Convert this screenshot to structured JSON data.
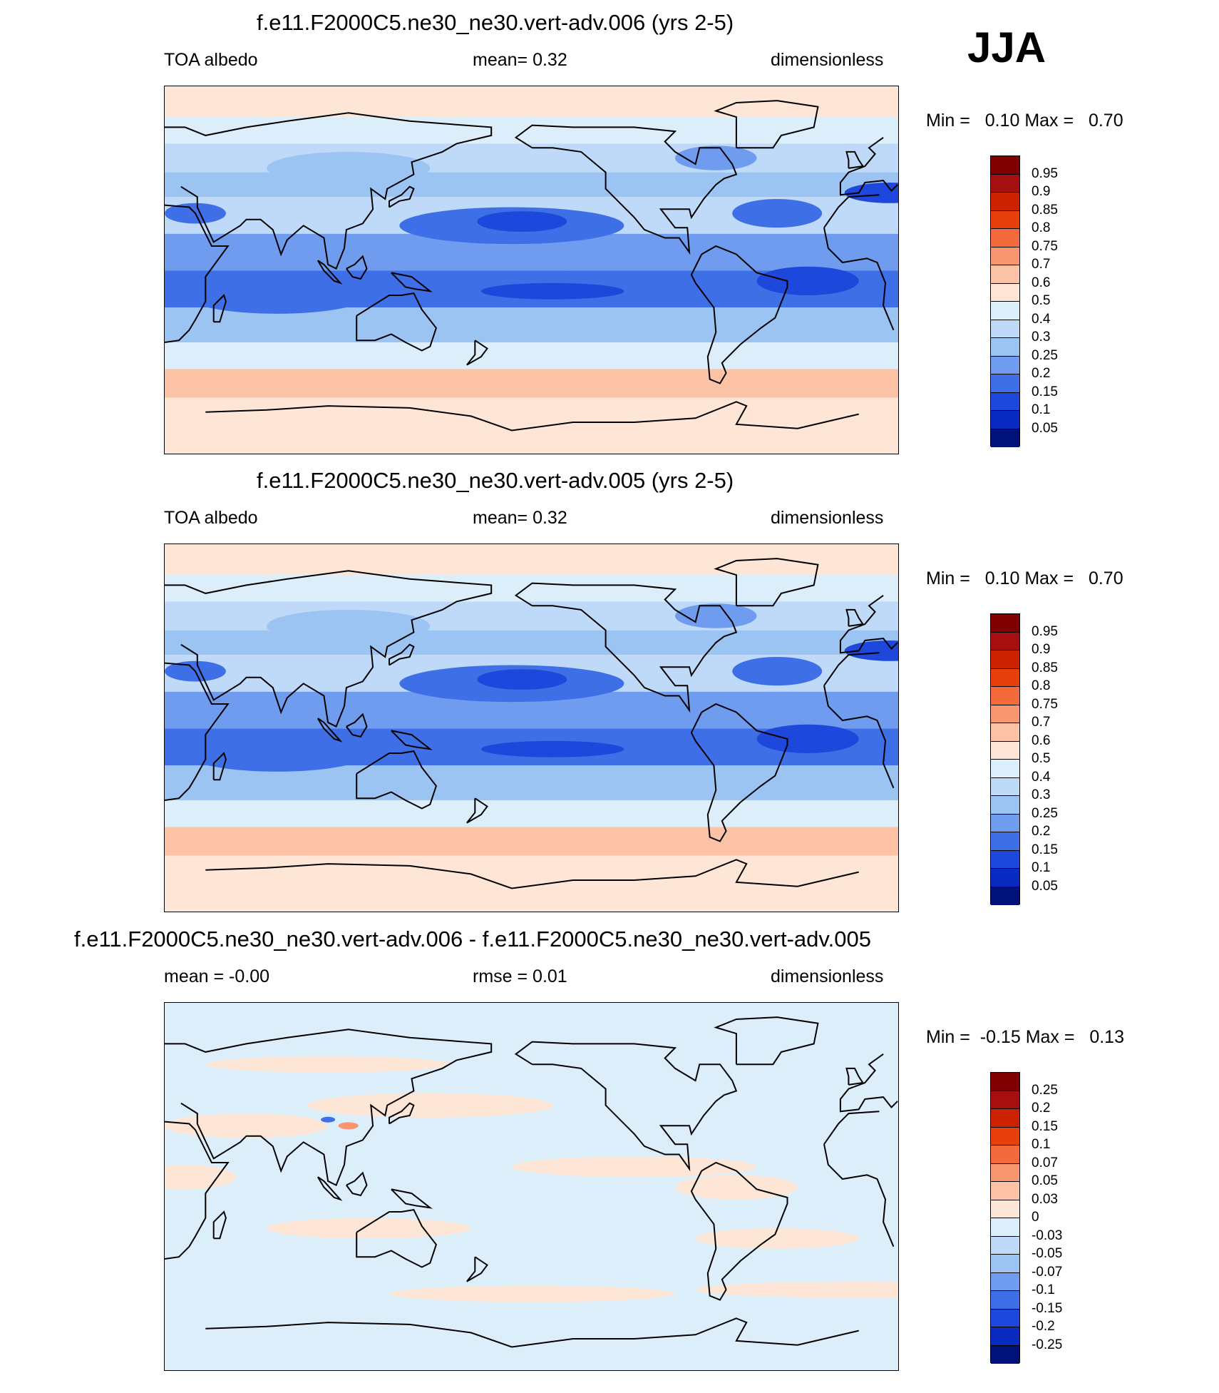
{
  "season": "JJA",
  "panels": [
    {
      "title": "f.e11.F2000C5.ne30_ne30.vert-adv.006 (yrs 2-5)",
      "left_label": "TOA albedo",
      "center_label": "mean=   0.32",
      "right_label": "dimensionless",
      "min_label": "Min =",
      "min_value": "0.10",
      "max_label": "Max =",
      "max_value": "0.70",
      "colorbar": {
        "labels": [
          "0.95",
          "0.9",
          "0.85",
          "0.8",
          "0.75",
          "0.7",
          "0.6",
          "0.5",
          "0.4",
          "0.3",
          "0.25",
          "0.2",
          "0.15",
          "0.1",
          "0.05"
        ],
        "colors": [
          "#7f0000",
          "#a50f0f",
          "#cc2200",
          "#e8400c",
          "#f36a3c",
          "#f89670",
          "#fbc2a6",
          "#fde6d6",
          "#ddeefb",
          "#bfdaf8",
          "#9cc4f3",
          "#6f9cee",
          "#3f6fe6",
          "#1e48dc",
          "#0a2bc2",
          "#00127a"
        ]
      },
      "map_kind": "albedo"
    },
    {
      "title": "f.e11.F2000C5.ne30_ne30.vert-adv.005 (yrs 2-5)",
      "left_label": "TOA albedo",
      "center_label": "mean=   0.32",
      "right_label": "dimensionless",
      "min_label": "Min =",
      "min_value": "0.10",
      "max_label": "Max =",
      "max_value": "0.70",
      "colorbar": {
        "labels": [
          "0.95",
          "0.9",
          "0.85",
          "0.8",
          "0.75",
          "0.7",
          "0.6",
          "0.5",
          "0.4",
          "0.3",
          "0.25",
          "0.2",
          "0.15",
          "0.1",
          "0.05"
        ],
        "colors": [
          "#7f0000",
          "#a50f0f",
          "#cc2200",
          "#e8400c",
          "#f36a3c",
          "#f89670",
          "#fbc2a6",
          "#fde6d6",
          "#ddeefb",
          "#bfdaf8",
          "#9cc4f3",
          "#6f9cee",
          "#3f6fe6",
          "#1e48dc",
          "#0a2bc2",
          "#00127a"
        ]
      },
      "map_kind": "albedo"
    },
    {
      "title": "f.e11.F2000C5.ne30_ne30.vert-adv.006 - f.e11.F2000C5.ne30_ne30.vert-adv.005",
      "left_label": "mean =  -0.00",
      "center_label": "rmse =   0.01",
      "right_label": "dimensionless",
      "min_label": "Min =",
      "min_value": "-0.15",
      "max_label": "Max =",
      "max_value": "0.13",
      "colorbar": {
        "labels": [
          "0.25",
          "0.2",
          "0.15",
          "0.1",
          "0.07",
          "0.05",
          "0.03",
          "0",
          "-0.03",
          "-0.05",
          "-0.07",
          "-0.1",
          "-0.15",
          "-0.2",
          "-0.25"
        ],
        "colors": [
          "#7f0000",
          "#a50f0f",
          "#cc2200",
          "#e8400c",
          "#f36a3c",
          "#f89670",
          "#fbc2a6",
          "#fde6d6",
          "#ddeefb",
          "#bfdaf8",
          "#9cc4f3",
          "#6f9cee",
          "#3f6fe6",
          "#1e48dc",
          "#0a2bc2",
          "#00127a"
        ]
      },
      "map_kind": "difference"
    }
  ]
}
